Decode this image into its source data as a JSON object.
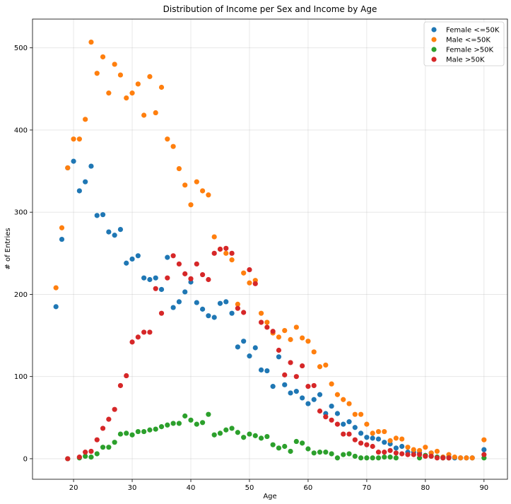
{
  "chart_data": {
    "type": "scatter",
    "title": "Distribution of Income per Sex and Income by Age",
    "xlabel": "Age",
    "ylabel": "# of Entries",
    "xlim": [
      13,
      94
    ],
    "ylim": [
      -25,
      535
    ],
    "xticks": [
      20,
      30,
      40,
      50,
      60,
      70,
      80,
      90
    ],
    "yticks": [
      0,
      100,
      200,
      300,
      400,
      500
    ],
    "grid": true,
    "legend_position": "top-right",
    "series": [
      {
        "name": "Female <=50K",
        "color": "#1f77b4",
        "points": [
          [
            17,
            185
          ],
          [
            18,
            267
          ],
          [
            19,
            354
          ],
          [
            20,
            362
          ],
          [
            21,
            326
          ],
          [
            22,
            337
          ],
          [
            23,
            356
          ],
          [
            24,
            296
          ],
          [
            25,
            297
          ],
          [
            26,
            276
          ],
          [
            27,
            272
          ],
          [
            28,
            279
          ],
          [
            29,
            238
          ],
          [
            30,
            243
          ],
          [
            31,
            247
          ],
          [
            32,
            220
          ],
          [
            33,
            218
          ],
          [
            34,
            220
          ],
          [
            35,
            206
          ],
          [
            36,
            245
          ],
          [
            37,
            184
          ],
          [
            38,
            191
          ],
          [
            39,
            203
          ],
          [
            40,
            215
          ],
          [
            41,
            190
          ],
          [
            42,
            182
          ],
          [
            43,
            174
          ],
          [
            44,
            172
          ],
          [
            45,
            189
          ],
          [
            46,
            191
          ],
          [
            47,
            177
          ],
          [
            48,
            136
          ],
          [
            49,
            143
          ],
          [
            50,
            125
          ],
          [
            51,
            135
          ],
          [
            52,
            108
          ],
          [
            53,
            107
          ],
          [
            54,
            88
          ],
          [
            55,
            124
          ],
          [
            56,
            90
          ],
          [
            57,
            80
          ],
          [
            58,
            82
          ],
          [
            59,
            74
          ],
          [
            60,
            67
          ],
          [
            61,
            72
          ],
          [
            62,
            78
          ],
          [
            63,
            55
          ],
          [
            64,
            64
          ],
          [
            65,
            55
          ],
          [
            66,
            42
          ],
          [
            67,
            45
          ],
          [
            68,
            38
          ],
          [
            69,
            31
          ],
          [
            70,
            26
          ],
          [
            71,
            25
          ],
          [
            72,
            24
          ],
          [
            73,
            20
          ],
          [
            74,
            18
          ],
          [
            75,
            13
          ],
          [
            76,
            15
          ],
          [
            77,
            8
          ],
          [
            78,
            8
          ],
          [
            79,
            7
          ],
          [
            80,
            4
          ],
          [
            81,
            7
          ],
          [
            82,
            2
          ],
          [
            83,
            2
          ],
          [
            84,
            2
          ],
          [
            85,
            1
          ],
          [
            86,
            1
          ],
          [
            87,
            1
          ],
          [
            88,
            1
          ],
          [
            90,
            11
          ]
        ]
      },
      {
        "name": "Male <=50K",
        "color": "#ff7f0e",
        "points": [
          [
            17,
            208
          ],
          [
            18,
            281
          ],
          [
            19,
            354
          ],
          [
            20,
            389
          ],
          [
            21,
            389
          ],
          [
            22,
            413
          ],
          [
            23,
            507
          ],
          [
            24,
            469
          ],
          [
            25,
            489
          ],
          [
            26,
            445
          ],
          [
            27,
            480
          ],
          [
            28,
            467
          ],
          [
            29,
            439
          ],
          [
            30,
            445
          ],
          [
            31,
            456
          ],
          [
            32,
            418
          ],
          [
            33,
            465
          ],
          [
            34,
            421
          ],
          [
            35,
            452
          ],
          [
            36,
            389
          ],
          [
            37,
            380
          ],
          [
            38,
            353
          ],
          [
            39,
            333
          ],
          [
            40,
            309
          ],
          [
            41,
            337
          ],
          [
            42,
            326
          ],
          [
            43,
            321
          ],
          [
            44,
            270
          ],
          [
            45,
            255
          ],
          [
            46,
            250
          ],
          [
            47,
            242
          ],
          [
            48,
            188
          ],
          [
            49,
            226
          ],
          [
            50,
            214
          ],
          [
            51,
            217
          ],
          [
            52,
            177
          ],
          [
            53,
            166
          ],
          [
            54,
            153
          ],
          [
            55,
            148
          ],
          [
            56,
            156
          ],
          [
            57,
            145
          ],
          [
            58,
            160
          ],
          [
            59,
            147
          ],
          [
            60,
            143
          ],
          [
            61,
            130
          ],
          [
            62,
            112
          ],
          [
            63,
            114
          ],
          [
            64,
            91
          ],
          [
            65,
            78
          ],
          [
            66,
            72
          ],
          [
            67,
            67
          ],
          [
            68,
            54
          ],
          [
            69,
            54
          ],
          [
            70,
            42
          ],
          [
            71,
            31
          ],
          [
            72,
            33
          ],
          [
            73,
            33
          ],
          [
            74,
            22
          ],
          [
            75,
            25
          ],
          [
            76,
            24
          ],
          [
            77,
            14
          ],
          [
            78,
            11
          ],
          [
            79,
            10
          ],
          [
            80,
            14
          ],
          [
            81,
            7
          ],
          [
            82,
            9
          ],
          [
            83,
            2
          ],
          [
            84,
            5
          ],
          [
            85,
            2
          ],
          [
            86,
            1
          ],
          [
            87,
            1
          ],
          [
            88,
            1
          ],
          [
            90,
            23
          ]
        ]
      },
      {
        "name": "Female >50K",
        "color": "#2ca02c",
        "points": [
          [
            19,
            0
          ],
          [
            21,
            1
          ],
          [
            22,
            3
          ],
          [
            23,
            2
          ],
          [
            24,
            6
          ],
          [
            25,
            14
          ],
          [
            26,
            14
          ],
          [
            27,
            20
          ],
          [
            28,
            30
          ],
          [
            29,
            31
          ],
          [
            30,
            29
          ],
          [
            31,
            33
          ],
          [
            32,
            33
          ],
          [
            33,
            35
          ],
          [
            34,
            36
          ],
          [
            35,
            39
          ],
          [
            36,
            41
          ],
          [
            37,
            43
          ],
          [
            38,
            43
          ],
          [
            39,
            52
          ],
          [
            40,
            47
          ],
          [
            41,
            42
          ],
          [
            42,
            44
          ],
          [
            43,
            54
          ],
          [
            44,
            29
          ],
          [
            45,
            31
          ],
          [
            46,
            35
          ],
          [
            47,
            37
          ],
          [
            48,
            32
          ],
          [
            49,
            26
          ],
          [
            50,
            30
          ],
          [
            51,
            28
          ],
          [
            52,
            25
          ],
          [
            53,
            27
          ],
          [
            54,
            17
          ],
          [
            55,
            13
          ],
          [
            56,
            15
          ],
          [
            57,
            9
          ],
          [
            58,
            21
          ],
          [
            59,
            19
          ],
          [
            60,
            12
          ],
          [
            61,
            7
          ],
          [
            62,
            8
          ],
          [
            63,
            8
          ],
          [
            64,
            6
          ],
          [
            65,
            1
          ],
          [
            66,
            5
          ],
          [
            67,
            6
          ],
          [
            68,
            3
          ],
          [
            69,
            1
          ],
          [
            70,
            1
          ],
          [
            71,
            1
          ],
          [
            72,
            1
          ],
          [
            73,
            2
          ],
          [
            74,
            2
          ],
          [
            75,
            1
          ],
          [
            79,
            1
          ],
          [
            80,
            4
          ],
          [
            81,
            3
          ],
          [
            82,
            2
          ],
          [
            83,
            1
          ],
          [
            84,
            1
          ],
          [
            90,
            1
          ]
        ]
      },
      {
        "name": "Male >50K",
        "color": "#d62728",
        "points": [
          [
            19,
            0
          ],
          [
            21,
            2
          ],
          [
            22,
            8
          ],
          [
            23,
            9
          ],
          [
            24,
            23
          ],
          [
            25,
            37
          ],
          [
            26,
            48
          ],
          [
            27,
            60
          ],
          [
            28,
            89
          ],
          [
            29,
            101
          ],
          [
            30,
            142
          ],
          [
            31,
            148
          ],
          [
            32,
            154
          ],
          [
            33,
            154
          ],
          [
            34,
            207
          ],
          [
            35,
            177
          ],
          [
            36,
            220
          ],
          [
            37,
            247
          ],
          [
            38,
            237
          ],
          [
            39,
            225
          ],
          [
            40,
            219
          ],
          [
            41,
            237
          ],
          [
            42,
            224
          ],
          [
            43,
            218
          ],
          [
            44,
            250
          ],
          [
            45,
            255
          ],
          [
            46,
            256
          ],
          [
            47,
            250
          ],
          [
            48,
            183
          ],
          [
            49,
            178
          ],
          [
            50,
            230
          ],
          [
            51,
            213
          ],
          [
            52,
            166
          ],
          [
            53,
            160
          ],
          [
            54,
            155
          ],
          [
            55,
            132
          ],
          [
            56,
            102
          ],
          [
            57,
            117
          ],
          [
            58,
            100
          ],
          [
            59,
            113
          ],
          [
            60,
            88
          ],
          [
            61,
            89
          ],
          [
            62,
            58
          ],
          [
            63,
            51
          ],
          [
            64,
            47
          ],
          [
            65,
            42
          ],
          [
            66,
            30
          ],
          [
            67,
            30
          ],
          [
            68,
            23
          ],
          [
            69,
            19
          ],
          [
            70,
            17
          ],
          [
            71,
            15
          ],
          [
            72,
            8
          ],
          [
            73,
            8
          ],
          [
            74,
            10
          ],
          [
            75,
            7
          ],
          [
            76,
            6
          ],
          [
            77,
            5
          ],
          [
            78,
            5
          ],
          [
            79,
            5
          ],
          [
            80,
            3
          ],
          [
            81,
            3
          ],
          [
            82,
            1
          ],
          [
            83,
            1
          ],
          [
            84,
            1
          ],
          [
            90,
            5
          ]
        ]
      }
    ]
  }
}
